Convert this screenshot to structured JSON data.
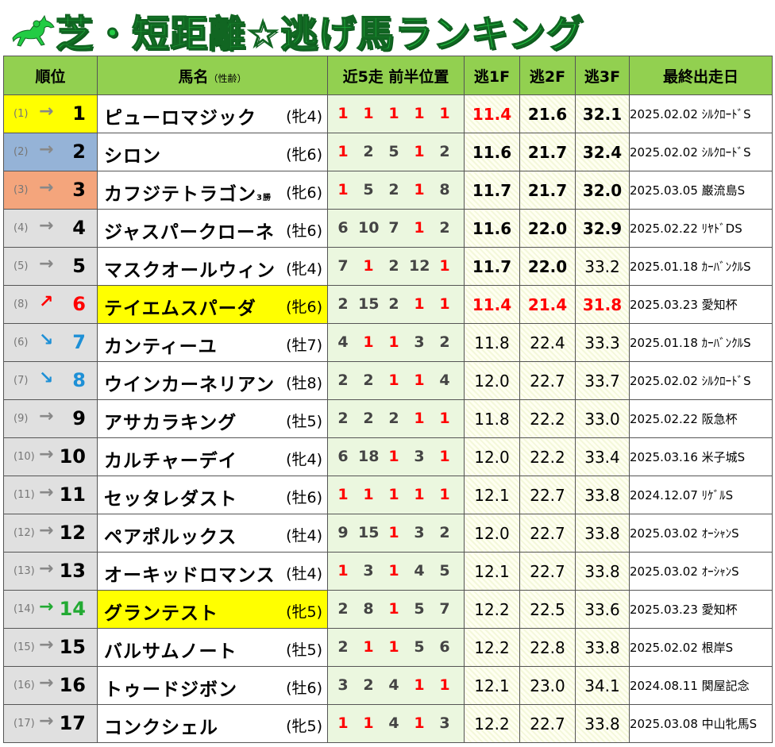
{
  "title": "芝・短距離☆逃げ馬ランキング",
  "header": {
    "rank": "順位",
    "name": "馬名",
    "name_note": "（性齢）",
    "positions": "近5走 前半位置",
    "f1": "逃1F",
    "f2": "逃2F",
    "f3": "逃3F",
    "last": "最終出走日"
  },
  "rows": [
    {
      "prev": "(1)",
      "arrow": "→",
      "rank": "1",
      "name": "ピューロマジック",
      "suffix": "",
      "sex": "(牝4)",
      "pos": [
        "1",
        "1",
        "1",
        "1",
        "1"
      ],
      "f1": "11.4",
      "f2": "21.6",
      "f3": "32.1",
      "date": "2025.02.02 ｼﾙｸﾛｰﾄﾞS"
    },
    {
      "prev": "(2)",
      "arrow": "→",
      "rank": "2",
      "name": "シロン",
      "suffix": "",
      "sex": "(牝6)",
      "pos": [
        "1",
        "2",
        "5",
        "1",
        "2"
      ],
      "f1": "11.6",
      "f2": "21.7",
      "f3": "32.4",
      "date": "2025.02.02 ｼﾙｸﾛｰﾄﾞS"
    },
    {
      "prev": "(3)",
      "arrow": "→",
      "rank": "3",
      "name": "カフジテトラゴン",
      "suffix": "3勝",
      "sex": "(牝6)",
      "pos": [
        "1",
        "5",
        "2",
        "1",
        "8"
      ],
      "f1": "11.7",
      "f2": "21.7",
      "f3": "32.0",
      "date": "2025.03.05 巌流島S"
    },
    {
      "prev": "(4)",
      "arrow": "→",
      "rank": "4",
      "name": "ジャスパークローネ",
      "suffix": "",
      "sex": "(牡6)",
      "pos": [
        "6",
        "10",
        "7",
        "1",
        "2"
      ],
      "f1": "11.6",
      "f2": "22.0",
      "f3": "32.9",
      "date": "2025.02.22 ﾘﾔﾄﾞDS"
    },
    {
      "prev": "(5)",
      "arrow": "→",
      "rank": "5",
      "name": "マスクオールウィン",
      "suffix": "",
      "sex": "(牝4)",
      "pos": [
        "7",
        "1",
        "2",
        "12",
        "1"
      ],
      "f1": "11.7",
      "f2": "22.0",
      "f3": "33.2",
      "date": "2025.01.18 ｶｰﾊﾞﾝｸﾙS"
    },
    {
      "prev": "(8)",
      "arrow": "↗",
      "rank": "6",
      "name": "テイエムスパーダ",
      "suffix": "",
      "sex": "(牝6)",
      "pos": [
        "2",
        "15",
        "2",
        "1",
        "1"
      ],
      "f1": "11.4",
      "f2": "21.4",
      "f3": "31.8",
      "date": "2025.03.23 愛知杯"
    },
    {
      "prev": "(6)",
      "arrow": "↘",
      "rank": "7",
      "name": "カンティーユ",
      "suffix": "",
      "sex": "(牡7)",
      "pos": [
        "4",
        "1",
        "1",
        "3",
        "2"
      ],
      "f1": "11.8",
      "f2": "22.4",
      "f3": "33.3",
      "date": "2025.01.18 ｶｰﾊﾞﾝｸﾙS"
    },
    {
      "prev": "(7)",
      "arrow": "↘",
      "rank": "8",
      "name": "ウインカーネリアン",
      "suffix": "",
      "sex": "(牡8)",
      "pos": [
        "2",
        "2",
        "1",
        "1",
        "4"
      ],
      "f1": "12.0",
      "f2": "22.7",
      "f3": "33.7",
      "date": "2025.02.02 ｼﾙｸﾛｰﾄﾞS"
    },
    {
      "prev": "(9)",
      "arrow": "→",
      "rank": "9",
      "name": "アサカラキング",
      "suffix": "",
      "sex": "(牡5)",
      "pos": [
        "2",
        "2",
        "2",
        "1",
        "1"
      ],
      "f1": "11.8",
      "f2": "22.2",
      "f3": "33.0",
      "date": "2025.02.22 阪急杯"
    },
    {
      "prev": "(10)",
      "arrow": "→",
      "rank": "10",
      "name": "カルチャーデイ",
      "suffix": "",
      "sex": "(牝4)",
      "pos": [
        "6",
        "18",
        "1",
        "3",
        "1"
      ],
      "f1": "12.0",
      "f2": "22.2",
      "f3": "33.4",
      "date": "2025.03.16 米子城S"
    },
    {
      "prev": "(11)",
      "arrow": "→",
      "rank": "11",
      "name": "セッタレダスト",
      "suffix": "",
      "sex": "(牡6)",
      "pos": [
        "1",
        "1",
        "1",
        "1",
        "1"
      ],
      "f1": "12.1",
      "f2": "22.7",
      "f3": "33.8",
      "date": "2024.12.07 ﾘｹﾞﾙS"
    },
    {
      "prev": "(12)",
      "arrow": "→",
      "rank": "12",
      "name": "ペアポルックス",
      "suffix": "",
      "sex": "(牡4)",
      "pos": [
        "9",
        "15",
        "1",
        "3",
        "2"
      ],
      "f1": "12.0",
      "f2": "22.7",
      "f3": "33.8",
      "date": "2025.03.02 ｵｰｼｬﾝS"
    },
    {
      "prev": "(13)",
      "arrow": "→",
      "rank": "13",
      "name": "オーキッドロマンス",
      "suffix": "",
      "sex": "(牡4)",
      "pos": [
        "1",
        "3",
        "1",
        "4",
        "5"
      ],
      "f1": "12.1",
      "f2": "22.7",
      "f3": "33.8",
      "date": "2025.03.02 ｵｰｼｬﾝS"
    },
    {
      "prev": "(14)",
      "arrow": "→",
      "rank": "14",
      "name": "グランテスト",
      "suffix": "",
      "sex": "(牝5)",
      "pos": [
        "2",
        "8",
        "1",
        "5",
        "7"
      ],
      "f1": "12.2",
      "f2": "22.5",
      "f3": "33.6",
      "date": "2025.03.23 愛知杯"
    },
    {
      "prev": "(15)",
      "arrow": "→",
      "rank": "15",
      "name": "バルサムノート",
      "suffix": "",
      "sex": "(牡5)",
      "pos": [
        "2",
        "1",
        "1",
        "5",
        "6"
      ],
      "f1": "12.2",
      "f2": "22.8",
      "f3": "33.8",
      "date": "2025.02.02 根岸S"
    },
    {
      "prev": "(16)",
      "arrow": "→",
      "rank": "16",
      "name": "トゥードジボン",
      "suffix": "",
      "sex": "(牡6)",
      "pos": [
        "3",
        "2",
        "4",
        "1",
        "1"
      ],
      "f1": "12.1",
      "f2": "23.0",
      "f3": "34.1",
      "date": "2024.08.11 関屋記念"
    },
    {
      "prev": "(17)",
      "arrow": "→",
      "rank": "17",
      "name": "コンクシェル",
      "suffix": "",
      "sex": "(牝5)",
      "pos": [
        "1",
        "1",
        "4",
        "1",
        "3"
      ],
      "f1": "12.2",
      "f2": "22.7",
      "f3": "33.8",
      "date": "2025.03.08 中山牝馬S"
    }
  ],
  "colors": {
    "title": "#22cc44",
    "header": "#92d050",
    "highlight": "#ffff00",
    "silver": "#95b3d7",
    "bronze": "#f4a57c",
    "red": "#ff0000",
    "blue": "#1e90d6",
    "green": "#22aa33"
  },
  "icons": {
    "title_icon": "horse-racing-icon"
  }
}
